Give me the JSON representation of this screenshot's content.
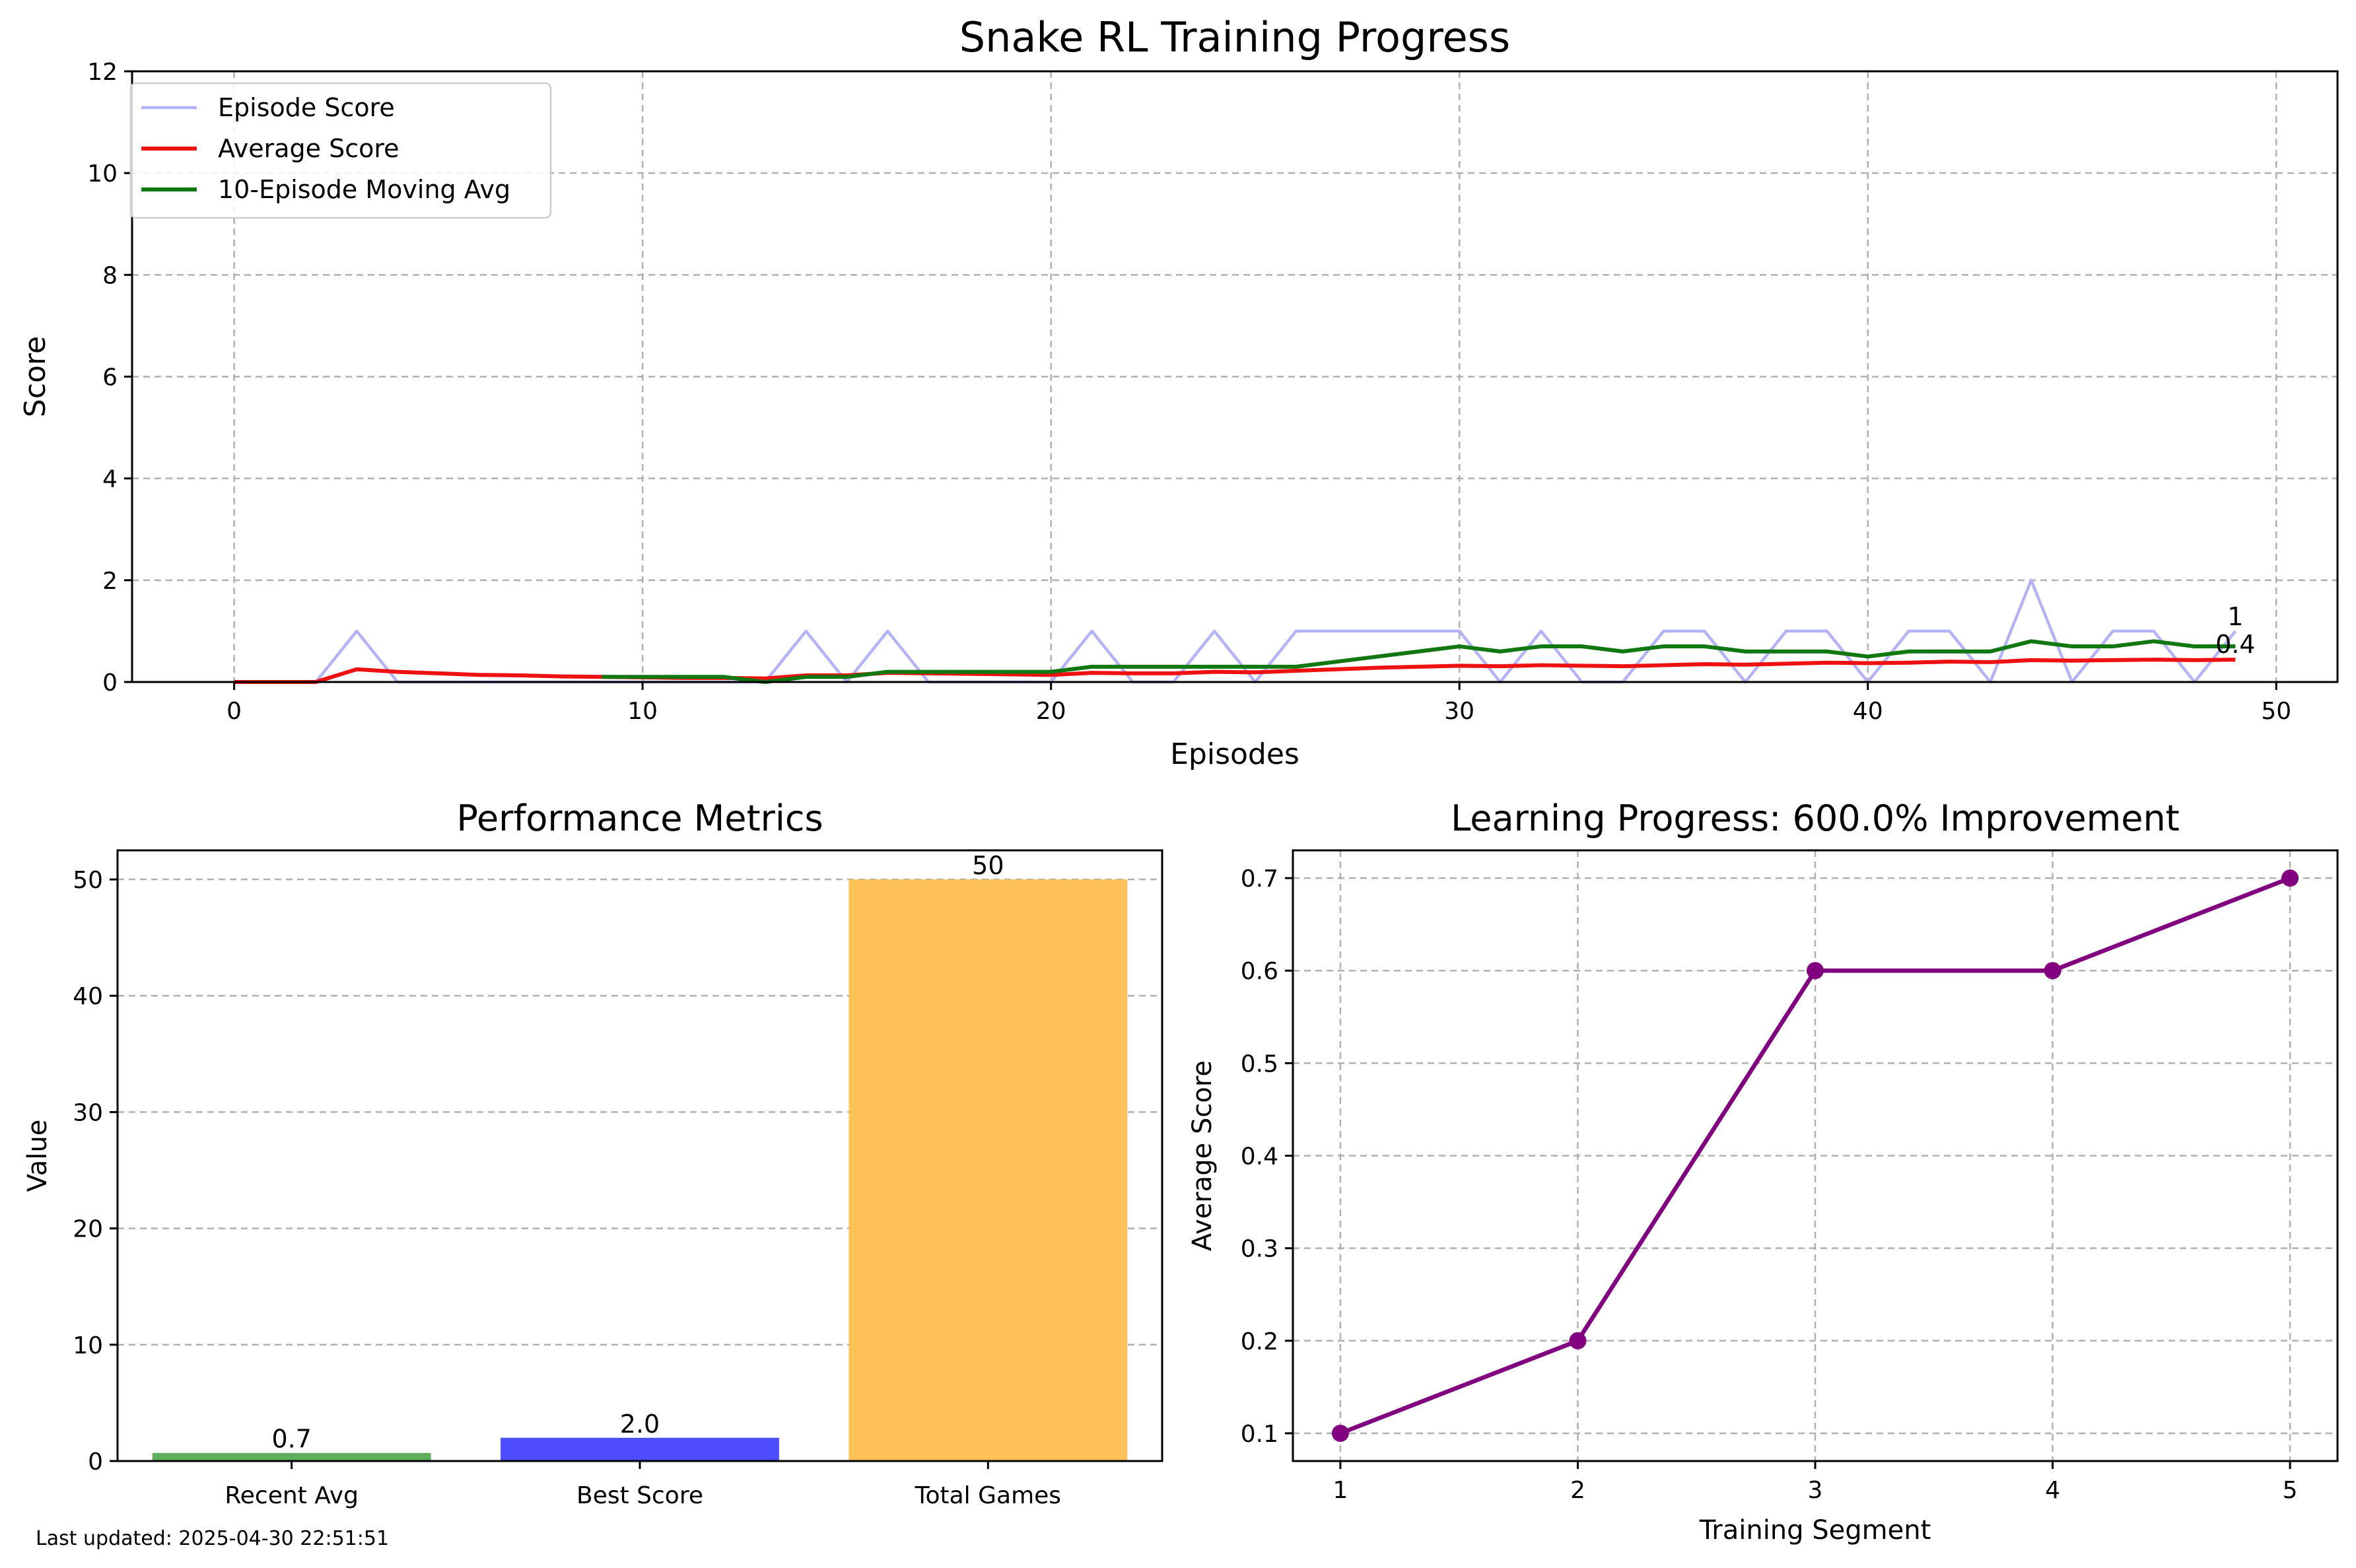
{
  "footer": {
    "last_updated": "Last updated: 2025-04-30 22:51:51"
  },
  "chart_data": [
    {
      "type": "line",
      "title": "Snake RL Training Progress",
      "xlabel": "Episodes",
      "ylabel": "Score",
      "xlim": [
        -2.5,
        51.5
      ],
      "ylim": [
        0,
        12
      ],
      "xticks": [
        0,
        10,
        20,
        30,
        40,
        50
      ],
      "yticks": [
        0,
        2,
        4,
        6,
        8,
        10,
        12
      ],
      "grid": true,
      "legend_position": "top-left",
      "series": [
        {
          "name": "Episode Score",
          "color": "#b3b3f5",
          "x": [
            0,
            1,
            2,
            3,
            4,
            5,
            6,
            7,
            8,
            9,
            10,
            11,
            12,
            13,
            14,
            15,
            16,
            17,
            18,
            19,
            20,
            21,
            22,
            23,
            24,
            25,
            26,
            27,
            28,
            29,
            30,
            31,
            32,
            33,
            34,
            35,
            36,
            37,
            38,
            39,
            40,
            41,
            42,
            43,
            44,
            45,
            46,
            47,
            48,
            49
          ],
          "y": [
            0,
            0,
            0,
            1,
            0,
            0,
            0,
            0,
            0,
            0,
            0,
            0,
            0,
            0,
            1,
            0,
            1,
            0,
            0,
            0,
            0,
            1,
            0,
            0,
            1,
            0,
            1,
            1,
            1,
            1,
            1,
            0,
            1,
            0,
            0,
            1,
            1,
            0,
            1,
            1,
            0,
            1,
            1,
            0,
            2,
            0,
            1,
            1,
            0,
            1
          ]
        },
        {
          "name": "Average Score",
          "color": "#ee1111",
          "x": [
            0,
            1,
            2,
            3,
            4,
            5,
            6,
            7,
            8,
            9,
            10,
            11,
            12,
            13,
            14,
            15,
            16,
            17,
            18,
            19,
            20,
            21,
            22,
            23,
            24,
            25,
            26,
            27,
            28,
            29,
            30,
            31,
            32,
            33,
            34,
            35,
            36,
            37,
            38,
            39,
            40,
            41,
            42,
            43,
            44,
            45,
            46,
            47,
            48,
            49
          ],
          "y": [
            0,
            0,
            0,
            0.25,
            0.2,
            0.17,
            0.14,
            0.13,
            0.11,
            0.1,
            0.09,
            0.08,
            0.08,
            0.07,
            0.13,
            0.13,
            0.18,
            0.17,
            0.16,
            0.15,
            0.14,
            0.18,
            0.17,
            0.17,
            0.2,
            0.19,
            0.22,
            0.25,
            0.28,
            0.3,
            0.32,
            0.31,
            0.33,
            0.32,
            0.31,
            0.33,
            0.35,
            0.34,
            0.36,
            0.38,
            0.37,
            0.38,
            0.4,
            0.39,
            0.43,
            0.42,
            0.43,
            0.44,
            0.43,
            0.44
          ]
        },
        {
          "name": "10-Episode Moving Avg",
          "color": "#117711",
          "x": [
            9,
            10,
            11,
            12,
            13,
            14,
            15,
            16,
            17,
            18,
            19,
            20,
            21,
            22,
            23,
            24,
            25,
            26,
            27,
            28,
            29,
            30,
            31,
            32,
            33,
            34,
            35,
            36,
            37,
            38,
            39,
            40,
            41,
            42,
            43,
            44,
            45,
            46,
            47,
            48,
            49
          ],
          "y": [
            0.1,
            0.1,
            0.1,
            0.1,
            0,
            0.1,
            0.1,
            0.2,
            0.2,
            0.2,
            0.2,
            0.2,
            0.3,
            0.3,
            0.3,
            0.3,
            0.3,
            0.3,
            0.4,
            0.5,
            0.6,
            0.7,
            0.6,
            0.7,
            0.7,
            0.6,
            0.7,
            0.7,
            0.6,
            0.6,
            0.6,
            0.5,
            0.6,
            0.6,
            0.6,
            0.8,
            0.7,
            0.7,
            0.8,
            0.7,
            0.7
          ]
        }
      ],
      "annotations": [
        {
          "text": "1",
          "x": 49,
          "y": 1.3,
          "color": "#000000"
        },
        {
          "text": "0.4",
          "x": 49,
          "y": 0.75,
          "color": "#ee1111"
        }
      ]
    },
    {
      "type": "bar",
      "title": "Performance Metrics",
      "xlabel": "",
      "ylabel": "Value",
      "categories": [
        "Recent Avg",
        "Best Score",
        "Total Games"
      ],
      "values": [
        0.7,
        2.0,
        50
      ],
      "value_labels": [
        "0.7",
        "2.0",
        "50"
      ],
      "colors": [
        "#55aa55",
        "#4444ff",
        "#ffbf4f"
      ],
      "ylim": [
        0,
        52.5
      ],
      "yticks": [
        0,
        10,
        20,
        30,
        40,
        50
      ],
      "grid": true
    },
    {
      "type": "line",
      "title": "Learning Progress: 600.0% Improvement",
      "xlabel": "Training Segment",
      "ylabel": "Average Score",
      "x": [
        1,
        2,
        3,
        4,
        5
      ],
      "y": [
        0.1,
        0.2,
        0.6,
        0.6,
        0.7
      ],
      "color": "#800080",
      "marker": "circle",
      "xlim": [
        0.8,
        5.2
      ],
      "ylim": [
        0.07,
        0.73
      ],
      "xticks": [
        1,
        2,
        3,
        4,
        5
      ],
      "yticks": [
        0.1,
        0.2,
        0.3,
        0.4,
        0.5,
        0.6,
        0.7
      ],
      "grid": true
    }
  ]
}
